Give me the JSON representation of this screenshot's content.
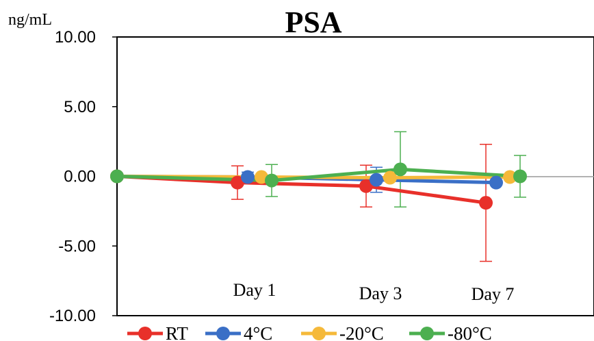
{
  "chart_data": {
    "type": "line",
    "title": "PSA",
    "unit_label": "ng/mL",
    "ylim": [
      -10,
      10
    ],
    "y_ticks": [
      "10.00",
      "5.00",
      "0.00",
      "-5.00",
      "-10.00"
    ],
    "categories": [
      "Day 1",
      "Day 3",
      "Day 7"
    ],
    "x": [
      0,
      1,
      3,
      7
    ],
    "legend_position": "bottom",
    "grid": false,
    "series": [
      {
        "name": "RT",
        "color": "#e8302a",
        "values": [
          0.0,
          -0.45,
          -0.7,
          -1.9
        ],
        "errors": [
          0,
          1.2,
          1.5,
          4.2
        ]
      },
      {
        "name": "4°C",
        "color": "#3a6fc6",
        "values": [
          0.0,
          -0.05,
          -0.25,
          -0.45
        ],
        "errors": [
          0,
          0.35,
          0.9,
          0.0
        ]
      },
      {
        "name": "-20°C",
        "color": "#f5b93a",
        "values": [
          0.0,
          -0.05,
          -0.1,
          -0.05
        ],
        "errors": [
          0,
          0.0,
          0.0,
          0.0
        ]
      },
      {
        "name": "-80°C",
        "color": "#4caf50",
        "values": [
          0.0,
          -0.3,
          0.5,
          0.0
        ],
        "errors": [
          0,
          1.15,
          2.7,
          1.5
        ]
      }
    ]
  }
}
